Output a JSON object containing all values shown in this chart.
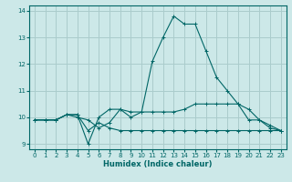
{
  "x": [
    0,
    1,
    2,
    3,
    4,
    5,
    6,
    7,
    8,
    9,
    10,
    11,
    12,
    13,
    14,
    15,
    16,
    17,
    18,
    19,
    20,
    21,
    22,
    23
  ],
  "line1": [
    9.9,
    9.9,
    9.9,
    10.1,
    10.1,
    9.5,
    9.8,
    9.6,
    9.5,
    9.5,
    9.5,
    9.5,
    9.5,
    9.5,
    9.5,
    9.5,
    9.5,
    9.5,
    9.5,
    9.5,
    9.5,
    9.5,
    9.5,
    9.5
  ],
  "line2": [
    9.9,
    9.9,
    9.9,
    10.1,
    10.1,
    9.0,
    10.0,
    10.3,
    10.3,
    10.2,
    10.2,
    10.2,
    10.2,
    10.2,
    10.3,
    10.5,
    10.5,
    10.5,
    10.5,
    10.5,
    9.9,
    9.9,
    9.6,
    9.5
  ],
  "line3": [
    9.9,
    9.9,
    9.9,
    10.1,
    10.0,
    9.9,
    9.6,
    9.8,
    10.3,
    10.0,
    10.2,
    12.1,
    13.0,
    13.8,
    13.5,
    13.5,
    12.5,
    11.5,
    11.0,
    10.5,
    10.3,
    9.9,
    9.7,
    9.5
  ],
  "bg_color": "#cce8e8",
  "grid_color": "#aacccc",
  "line_color": "#006666",
  "ylim": [
    8.8,
    14.2
  ],
  "yticks": [
    9,
    10,
    11,
    12,
    13,
    14
  ],
  "xlim": [
    -0.5,
    23.5
  ],
  "xticks": [
    0,
    1,
    2,
    3,
    4,
    5,
    6,
    7,
    8,
    9,
    10,
    11,
    12,
    13,
    14,
    15,
    16,
    17,
    18,
    19,
    20,
    21,
    22,
    23
  ],
  "xlabel": "Humidex (Indice chaleur)",
  "tick_labelsize": 5,
  "xlabel_fontsize": 6
}
